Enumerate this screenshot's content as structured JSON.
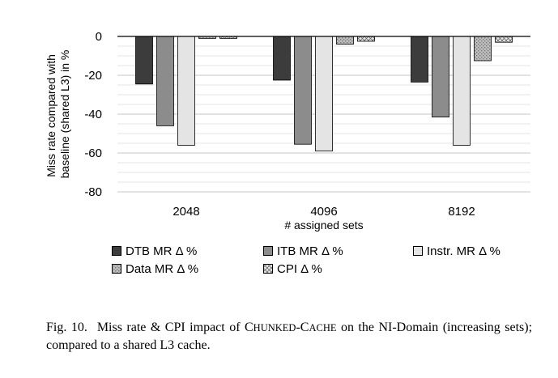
{
  "chart_data": {
    "type": "bar",
    "categories": [
      "2048",
      "4096",
      "8192"
    ],
    "series": [
      {
        "name": "DTB MR  Δ %",
        "values": [
          -24.5,
          -22.5,
          -23.5
        ],
        "color": "#3c3c3c",
        "pattern": "solid"
      },
      {
        "name": "ITB MR Δ %",
        "values": [
          -46,
          -55.5,
          -41.5
        ],
        "color": "#8c8c8c",
        "pattern": "solid"
      },
      {
        "name": "Instr. MR Δ %",
        "values": [
          -56,
          -59,
          -56
        ],
        "color": "#e4e4e4",
        "pattern": "solid"
      },
      {
        "name": "Data MR Δ %",
        "values": [
          -1,
          -4,
          -12.5
        ],
        "color": "#bdbdbd",
        "pattern": "dots"
      },
      {
        "name": "CPI Δ %",
        "values": [
          -1,
          -2.5,
          -3
        ],
        "color": "#d8d8d8",
        "pattern": "crosshatch"
      }
    ],
    "xlabel": "# assigned sets",
    "ylabel": "Miss rate compared with baseline (shared L3) in %",
    "ylim": [
      -80,
      0
    ],
    "yticks": [
      0,
      -20,
      -40,
      -60,
      -80
    ],
    "grid": "horizontal",
    "legend": "bottom"
  },
  "caption": {
    "fig_label": "Fig. 10.",
    "text_before": "Miss rate & CPI impact of ",
    "name_parts": [
      "C",
      "HUNKED",
      "-C",
      "ACHE"
    ],
    "text_after": " on the NI-Domain (increasing sets); compared to a shared L3 cache."
  }
}
